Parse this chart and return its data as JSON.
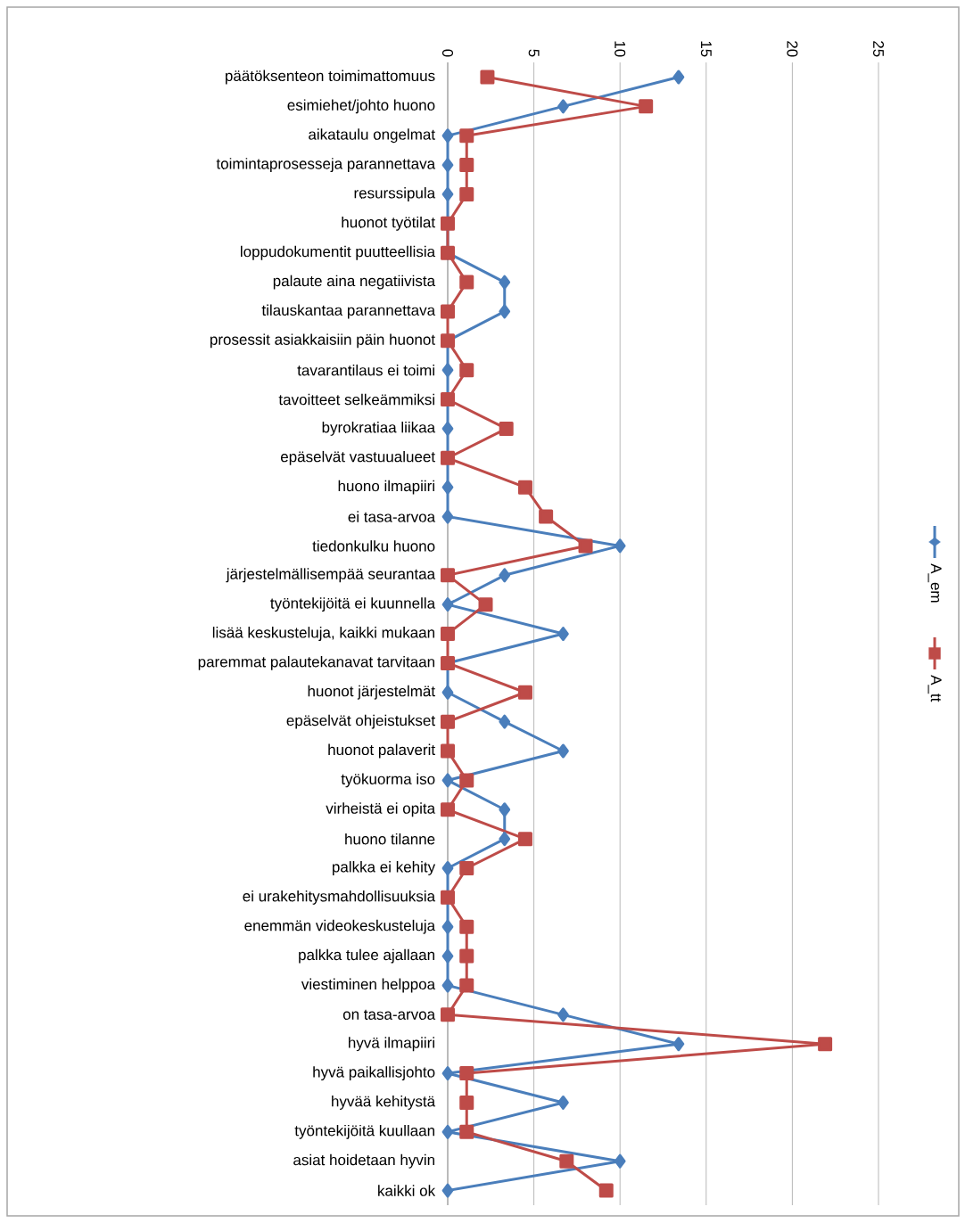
{
  "chart_data": {
    "type": "line",
    "orientation": "horizontal",
    "categories": [
      "päätöksenteon toimimattomuus",
      "esimiehet/johto huono",
      "aikataulu ongelmat",
      "toimintaprosesseja parannettava",
      "resurssipula",
      "huonot työtilat",
      "loppudokumentit puutteellisia",
      "palaute aina negatiivista",
      "tilauskantaa parannettava",
      "prosessit asiakkaisiin päin huonot",
      "tavarantilaus ei toimi",
      "tavoitteet selkeämmiksi",
      "byrokratiaa liikaa",
      "epäselvät vastuualueet",
      "huono ilmapiiri",
      "ei tasa-arvoa",
      "tiedonkulku huono",
      "järjestelmällisempää seurantaa",
      "työntekijöitä ei kuunnella",
      "lisää keskusteluja, kaikki mukaan",
      "paremmat palautekanavat tarvitaan",
      "huonot järjestelmät",
      "epäselvät ohjeistukset",
      "huonot palaverit",
      "työkuorma iso",
      "virheistä ei opita",
      "huono tilanne",
      "palkka ei kehity",
      "ei urakehitysmahdollisuuksia",
      "enemmän videokeskusteluja",
      "palkka tulee ajallaan",
      "viestiminen helppoa",
      "on tasa-arvoa",
      "hyvä ilmapiiri",
      "hyvä paikallisjohto",
      "hyvää kehitystä",
      "työntekijöitä kuullaan",
      "asiat hoidetaan hyvin",
      "kaikki ok"
    ],
    "series": [
      {
        "name": "A_em",
        "color": "#4a7ebb",
        "marker": "diamond",
        "values": [
          13.4,
          6.7,
          0,
          0,
          0,
          0,
          0,
          3.3,
          3.3,
          0,
          0,
          0,
          0,
          0,
          0,
          0,
          10,
          3.3,
          0,
          6.7,
          0,
          0,
          3.3,
          6.7,
          0,
          3.3,
          3.3,
          0,
          0,
          0,
          0,
          0,
          6.7,
          13.4,
          0,
          6.7,
          0,
          10,
          0
        ]
      },
      {
        "name": "A_tt",
        "color": "#be4b48",
        "marker": "square",
        "values": [
          2.3,
          11.5,
          1.1,
          1.1,
          1.1,
          0,
          0,
          1.1,
          0,
          0,
          1.1,
          0,
          3.4,
          0,
          4.5,
          5.7,
          8,
          0,
          2.2,
          0,
          0,
          4.5,
          0,
          0,
          1.1,
          0,
          4.5,
          1.1,
          0,
          1.1,
          1.1,
          1.1,
          0,
          21.9,
          1.1,
          1.1,
          1.1,
          6.9,
          9.2
        ]
      }
    ],
    "xlim": [
      0,
      25
    ],
    "xticks": [
      0,
      5,
      10,
      15,
      20,
      25
    ],
    "grid": "x",
    "legend": "right"
  }
}
